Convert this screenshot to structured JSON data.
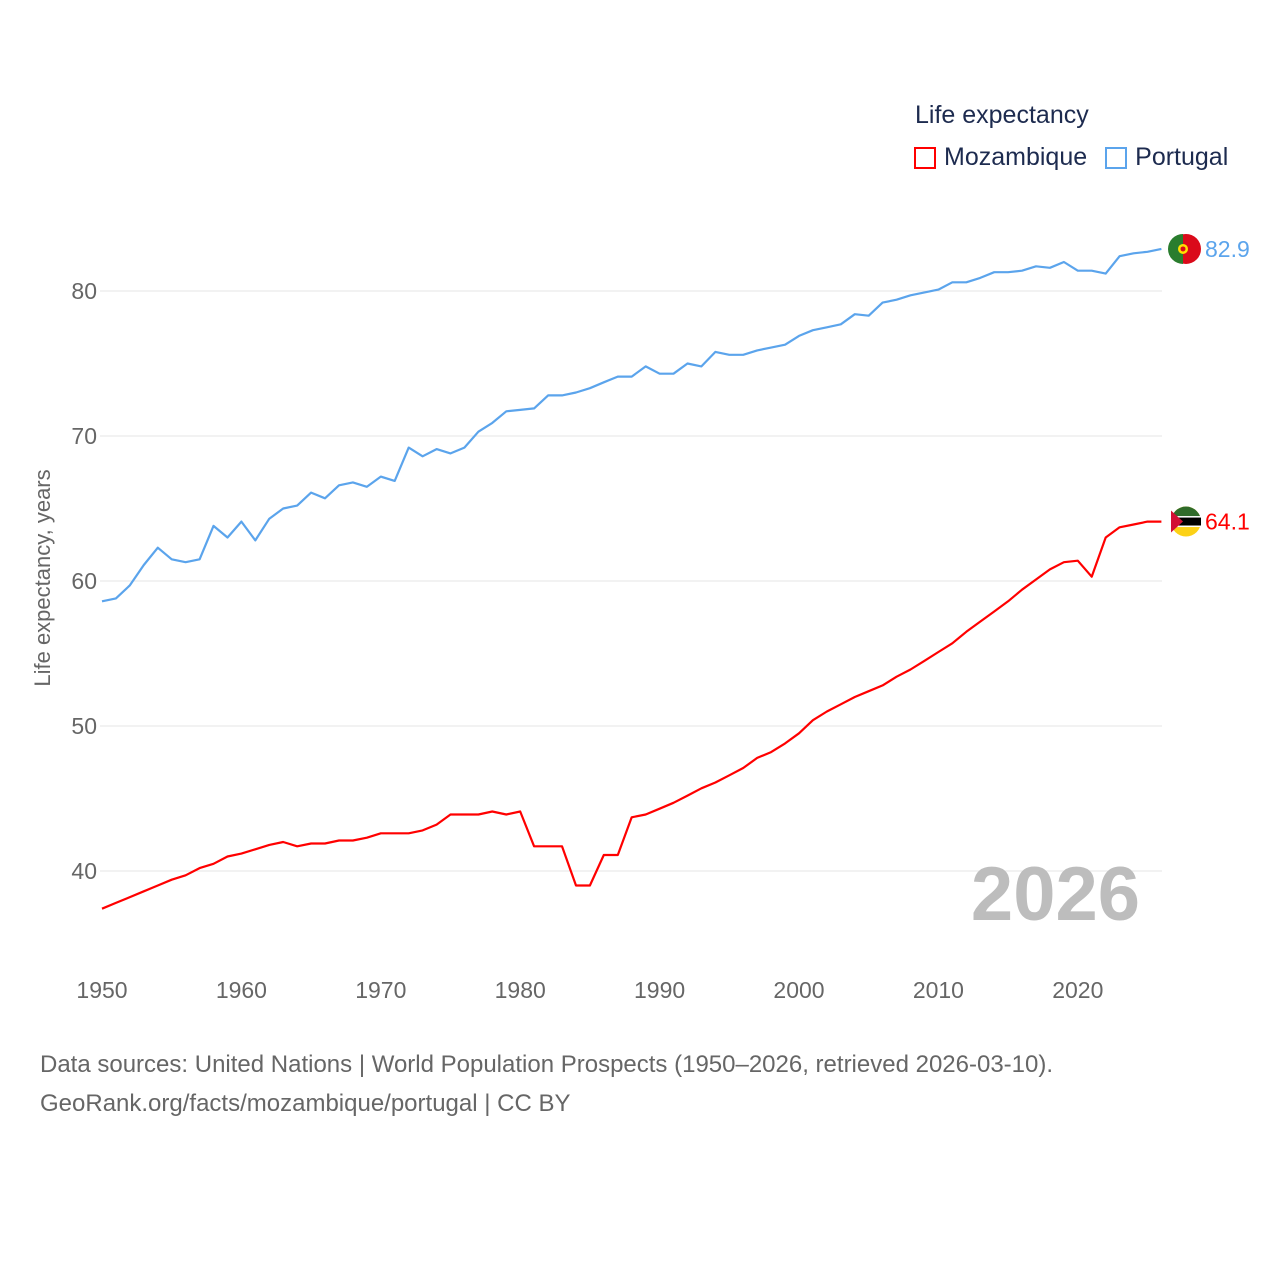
{
  "chart_data": {
    "type": "line",
    "title": "Life expectancy",
    "xlabel": "",
    "ylabel": "Life expectancy, years",
    "xlim": [
      1950,
      2026
    ],
    "ylim": [
      35.5,
      85
    ],
    "yticks": [
      40,
      50,
      60,
      70,
      80
    ],
    "xticks": [
      1950,
      1960,
      1970,
      1980,
      1990,
      2000,
      2010,
      2020
    ],
    "grid": true,
    "legend_position": "top-right",
    "year_label": "2026",
    "x_start": 1950,
    "series": [
      {
        "name": "Mozambique",
        "color": "#ff0000",
        "end_label": "64.1",
        "values": [
          37.4,
          37.8,
          38.2,
          38.6,
          39.0,
          39.4,
          39.7,
          40.2,
          40.5,
          41.0,
          41.2,
          41.5,
          41.8,
          42.0,
          41.7,
          41.9,
          41.9,
          42.1,
          42.1,
          42.3,
          42.6,
          42.6,
          42.6,
          42.8,
          43.2,
          43.9,
          43.9,
          43.9,
          44.1,
          43.9,
          44.1,
          41.7,
          41.7,
          41.7,
          39.0,
          39.0,
          41.1,
          41.1,
          43.7,
          43.9,
          44.3,
          44.7,
          45.2,
          45.7,
          46.1,
          46.6,
          47.1,
          47.8,
          48.2,
          48.8,
          49.5,
          50.4,
          51.0,
          51.5,
          52.0,
          52.4,
          52.8,
          53.4,
          53.9,
          54.5,
          55.1,
          55.7,
          56.5,
          57.2,
          57.9,
          58.6,
          59.4,
          60.1,
          60.8,
          61.3,
          61.4,
          60.3,
          63.0,
          63.7,
          63.9,
          64.1,
          64.1
        ]
      },
      {
        "name": "Portugal",
        "color": "#5ba4ec",
        "end_label": "82.9",
        "values": [
          58.6,
          58.8,
          59.7,
          61.1,
          62.3,
          61.5,
          61.3,
          61.5,
          63.8,
          63.0,
          64.1,
          62.8,
          64.3,
          65.0,
          65.2,
          66.1,
          65.7,
          66.6,
          66.8,
          66.5,
          67.2,
          66.9,
          69.2,
          68.6,
          69.1,
          68.8,
          69.2,
          70.3,
          70.9,
          71.7,
          71.8,
          71.9,
          72.8,
          72.8,
          73.0,
          73.3,
          73.7,
          74.1,
          74.1,
          74.8,
          74.3,
          74.3,
          75.0,
          74.8,
          75.8,
          75.6,
          75.6,
          75.9,
          76.1,
          76.3,
          76.9,
          77.3,
          77.5,
          77.7,
          78.4,
          78.3,
          79.2,
          79.4,
          79.7,
          79.9,
          80.1,
          80.6,
          80.6,
          80.9,
          81.3,
          81.3,
          81.4,
          81.7,
          81.6,
          82.0,
          81.4,
          81.4,
          81.2,
          82.4,
          82.6,
          82.7,
          82.9
        ]
      }
    ]
  },
  "source": {
    "line1": "Data sources: United Nations | World Population Prospects (1950–2026, retrieved 2026-03-10).",
    "line2": "GeoRank.org/facts/mozambique/portugal | CC BY"
  }
}
